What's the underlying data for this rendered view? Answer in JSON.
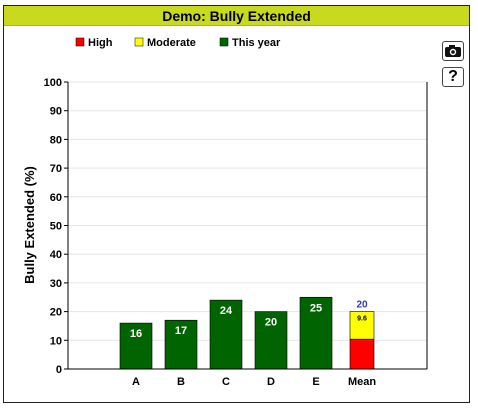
{
  "window": {
    "title": "Demo: Bully Extended"
  },
  "toolbar": {
    "camera_icon": "camera-icon",
    "help_label": "?"
  },
  "colors": {
    "title_bg": "#c8d91e",
    "high": "#ff0000",
    "moderate": "#ffff00",
    "this_year": "#006400",
    "mean_label": "#3333cc"
  },
  "chart_data": {
    "type": "bar",
    "title": "",
    "ylabel": "Bully Extended (%)",
    "xlabel": "",
    "ylim": [
      0,
      100
    ],
    "yticks": [
      0,
      10,
      20,
      30,
      40,
      50,
      60,
      70,
      80,
      90,
      100
    ],
    "legend": {
      "placement": "top-left",
      "entries": [
        {
          "label": "High",
          "color": "#ff0000"
        },
        {
          "label": "Moderate",
          "color": "#ffff00"
        },
        {
          "label": "This year",
          "color": "#006400"
        }
      ]
    },
    "categories": [
      "A",
      "B",
      "C",
      "D",
      "E"
    ],
    "values": [
      16,
      17,
      24,
      20,
      25
    ],
    "value_labels": [
      "16",
      "17",
      "24",
      "20",
      "25"
    ],
    "mean": {
      "label": "Mean",
      "total": 20,
      "total_label": "20",
      "segments": [
        {
          "name": "High",
          "value": 10.4,
          "label": ""
        },
        {
          "name": "Moderate",
          "value": 9.6,
          "label": "9.6"
        }
      ]
    },
    "grid": true
  }
}
